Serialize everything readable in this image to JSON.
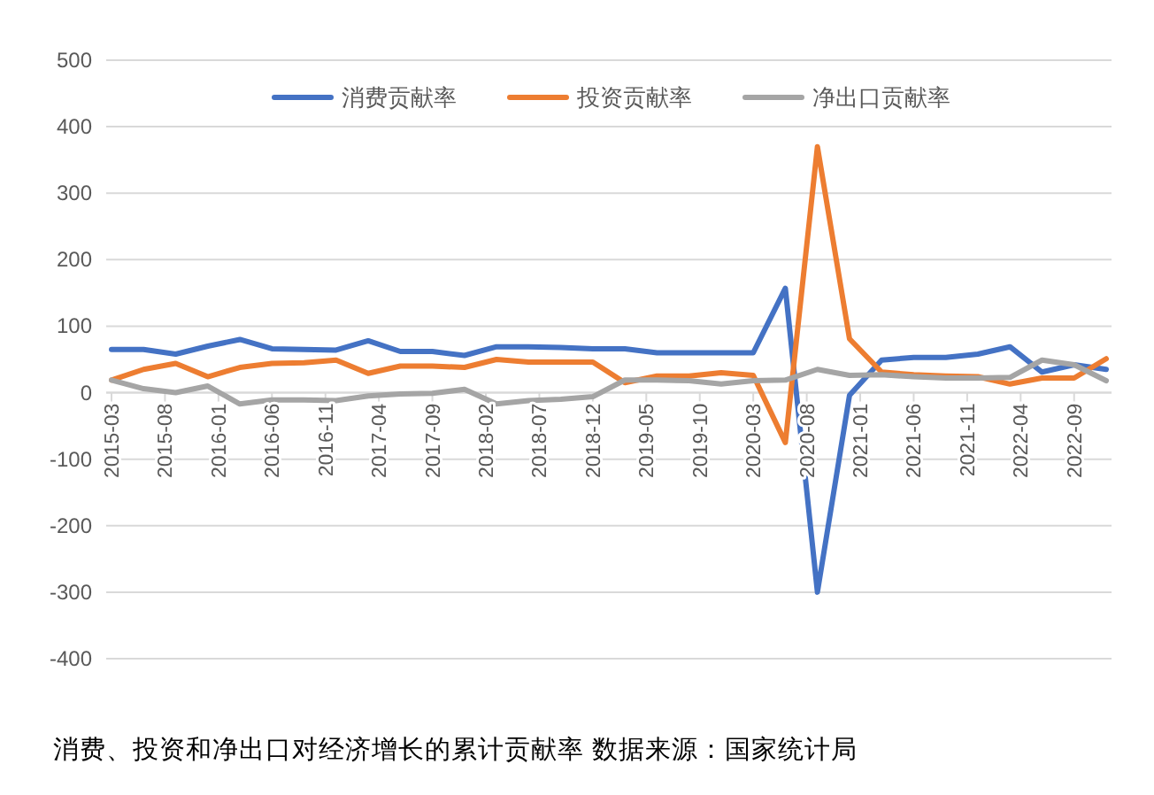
{
  "chart_data": {
    "type": "line",
    "x": [
      "2015-03",
      "2015-06",
      "2015-09",
      "2015-12",
      "2016-03",
      "2016-06",
      "2016-09",
      "2016-12",
      "2017-03",
      "2017-06",
      "2017-09",
      "2017-12",
      "2018-03",
      "2018-06",
      "2018-09",
      "2018-12",
      "2019-03",
      "2019-06",
      "2019-09",
      "2019-12",
      "2020-03",
      "2020-06",
      "2020-09",
      "2020-12",
      "2021-03",
      "2021-06",
      "2021-09",
      "2021-12",
      "2022-03",
      "2022-06",
      "2022-09",
      "2022-12"
    ],
    "series": [
      {
        "name": "消费贡献率",
        "color": "#4472c4",
        "values": [
          65,
          65,
          58,
          70,
          80,
          66,
          65,
          64,
          78,
          62,
          62,
          56,
          69,
          69,
          68,
          66,
          66,
          60,
          60,
          60,
          60,
          157,
          -300,
          -4,
          49,
          53,
          53,
          58,
          69,
          31,
          42,
          35
        ]
      },
      {
        "name": "投资贡献率",
        "color": "#ed7d31",
        "values": [
          19,
          35,
          44,
          24,
          38,
          44,
          45,
          49,
          29,
          40,
          40,
          38,
          50,
          46,
          46,
          46,
          15,
          25,
          25,
          30,
          26,
          -75,
          370,
          81,
          31,
          27,
          25,
          24,
          13,
          22,
          22,
          51
        ]
      },
      {
        "name": "净出口贡献率",
        "color": "#a5a5a5",
        "values": [
          19,
          6,
          0,
          10,
          -17,
          -11,
          -11,
          -12,
          -5,
          -2,
          -1,
          5,
          -17,
          -12,
          -10,
          -6,
          19,
          19,
          18,
          13,
          18,
          19,
          35,
          26,
          27,
          24,
          22,
          22,
          23,
          49,
          42,
          18
        ]
      }
    ],
    "xlim": [
      "2015-03",
      "2022-12"
    ],
    "xticks": [
      "2015-03",
      "2015-08",
      "2016-01",
      "2016-06",
      "2016-11",
      "2017-04",
      "2017-09",
      "2018-02",
      "2018-07",
      "2018-12",
      "2019-05",
      "2019-10",
      "2020-03",
      "2020-08",
      "2021-01",
      "2021-06",
      "2021-11",
      "2022-04",
      "2022-09"
    ],
    "ylim": [
      -400,
      500
    ],
    "yticks": [
      -400,
      -300,
      -200,
      -100,
      0,
      100,
      200,
      300,
      400,
      500
    ],
    "grid": "y",
    "legend": "top",
    "marker": "none",
    "line_style": "solid",
    "annotations": [
      "消费、投资和净出口对经济增长的累计贡献率 数据来源：国家统计局"
    ]
  }
}
